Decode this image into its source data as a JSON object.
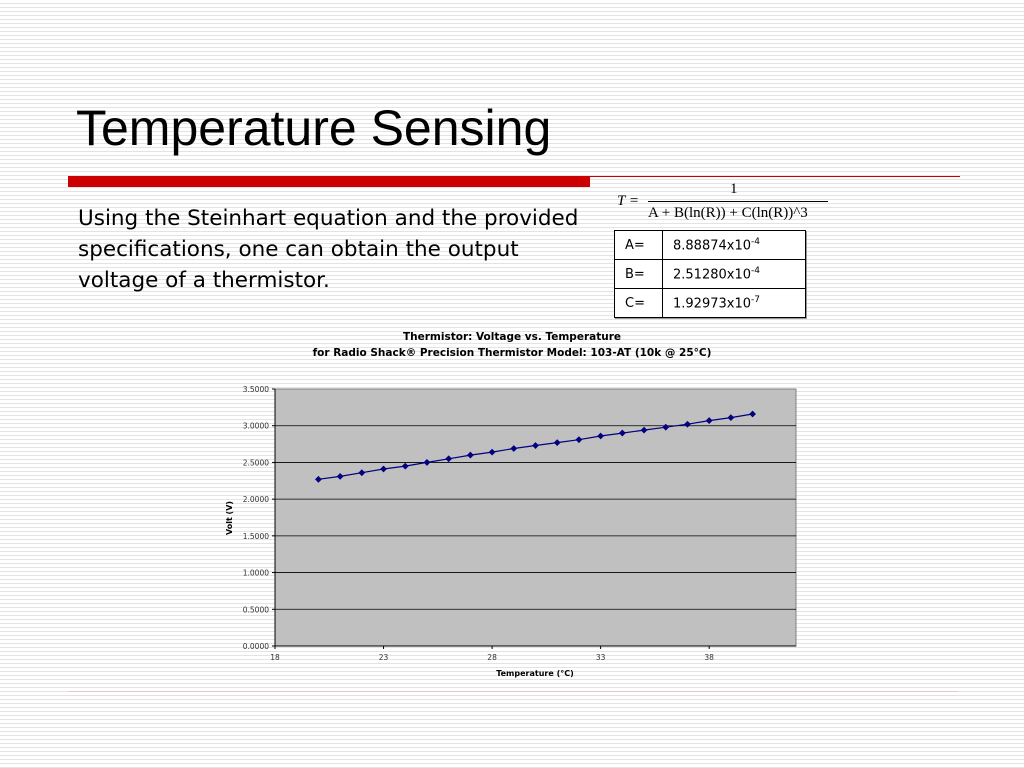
{
  "slide": {
    "title": "Temperature Sensing",
    "bullet": "Using the Steinhart equation and the provided specifications, one can obtain the output voltage of a thermistor.",
    "colors": {
      "accent_red": "#cc0000",
      "chart_plot_bg": "#c0c0c0",
      "series_color": "#000080"
    }
  },
  "equation": {
    "lhs": "T =",
    "numerator": "1",
    "denominator": "A + B(ln(R)) + C(ln(R))^3"
  },
  "coefficients": [
    {
      "label": "A=",
      "mantissa": "8.88874x10",
      "exponent": "-4"
    },
    {
      "label": "B=",
      "mantissa": "2.51280x10",
      "exponent": "-4"
    },
    {
      "label": "C=",
      "mantissa": "1.92973x10",
      "exponent": "-7"
    }
  ],
  "chart_data": {
    "type": "line",
    "title": "Thermistor: Voltage vs. Temperature",
    "subtitle": "for Radio Shack® Precision Thermistor Model: 103-AT (10k @ 25°C)",
    "xlabel": "Temperature (°C)",
    "ylabel": "Volt (V)",
    "xlim": [
      18,
      42
    ],
    "ylim": [
      0,
      3.5
    ],
    "x_ticks": [
      18,
      23,
      28,
      33,
      38
    ],
    "x_tick_labels": [
      "18",
      "23",
      "28",
      "33",
      "38"
    ],
    "y_ticks": [
      0,
      0.5,
      1.0,
      1.5,
      2.0,
      2.5,
      3.0,
      3.5
    ],
    "y_tick_labels": [
      "0.0000",
      "0.5000",
      "1.0000",
      "1.5000",
      "2.0000",
      "2.5000",
      "3.0000",
      "3.5000"
    ],
    "grid": "horizontal",
    "legend": "none",
    "series": [
      {
        "marker": "diamond",
        "x": [
          20,
          21,
          22,
          23,
          24,
          25,
          26,
          27,
          28,
          29,
          30,
          31,
          32,
          33,
          34,
          35,
          36,
          37,
          38,
          39,
          40
        ],
        "y": [
          2.27,
          2.31,
          2.36,
          2.41,
          2.45,
          2.5,
          2.55,
          2.6,
          2.64,
          2.69,
          2.73,
          2.77,
          2.81,
          2.86,
          2.9,
          2.94,
          2.98,
          3.02,
          3.07,
          3.11,
          3.16
        ]
      }
    ]
  }
}
